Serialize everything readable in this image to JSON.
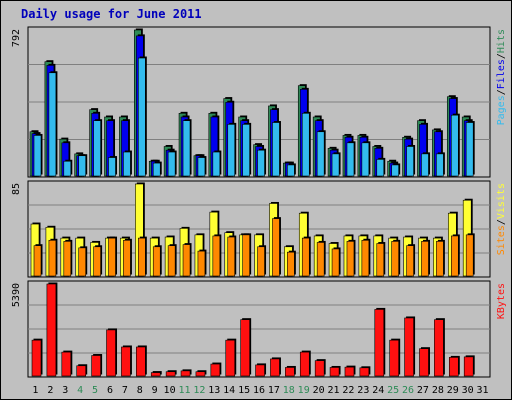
{
  "title": "Daily usage for June 2011",
  "colors": {
    "hits": "#2e8b57",
    "files": "#0000ee",
    "pages": "#33bbee",
    "visits": "#ffff33",
    "sites": "#ff8800",
    "kbytes": "#ff1010",
    "weekend_day_label": "#2e8b57",
    "weekday_label": "#000000",
    "title": "#0000bb"
  },
  "panels": {
    "top": {
      "max_label": "792",
      "legend": [
        "Pages",
        "/",
        "Files",
        "/",
        "Hits"
      ]
    },
    "mid": {
      "max_label": "85",
      "legend": [
        "Sites",
        "/",
        "Visits"
      ]
    },
    "bot": {
      "max_label": "5390",
      "legend": [
        "KBytes"
      ]
    }
  },
  "chart_data": {
    "type": "bar",
    "title": "Daily usage for June 2011",
    "categories": [
      "1",
      "2",
      "3",
      "4",
      "5",
      "6",
      "7",
      "8",
      "9",
      "10",
      "11",
      "12",
      "13",
      "14",
      "15",
      "16",
      "17",
      "18",
      "19",
      "20",
      "21",
      "22",
      "23",
      "24",
      "25",
      "26",
      "27",
      "28",
      "29",
      "30",
      "31"
    ],
    "weekend_days": [
      "4",
      "5",
      "11",
      "12",
      "18",
      "19",
      "25",
      "26"
    ],
    "series": [
      {
        "name": "Hits",
        "panel": "top",
        "ylim": [
          0,
          792
        ],
        "values": [
          240,
          620,
          200,
          120,
          360,
          320,
          320,
          792,
          80,
          160,
          340,
          110,
          340,
          420,
          320,
          170,
          380,
          70,
          490,
          320,
          150,
          220,
          220,
          160,
          80,
          210,
          300,
          250,
          430,
          320,
          0
        ]
      },
      {
        "name": "Files",
        "panel": "top",
        "ylim": [
          0,
          792
        ],
        "values": [
          230,
          600,
          180,
          110,
          340,
          300,
          300,
          760,
          80,
          140,
          320,
          110,
          320,
          400,
          300,
          160,
          360,
          70,
          470,
          300,
          140,
          210,
          210,
          150,
          70,
          200,
          280,
          240,
          420,
          300,
          0
        ]
      },
      {
        "name": "Pages",
        "panel": "top",
        "ylim": [
          0,
          792
        ],
        "values": [
          220,
          560,
          80,
          110,
          300,
          100,
          130,
          640,
          70,
          130,
          300,
          100,
          130,
          280,
          280,
          140,
          290,
          60,
          340,
          240,
          120,
          180,
          180,
          90,
          60,
          160,
          120,
          120,
          330,
          290,
          0
        ]
      },
      {
        "name": "Visits",
        "panel": "mid",
        "ylim": [
          0,
          85
        ],
        "values": [
          48,
          45,
          35,
          35,
          31,
          35,
          35,
          85,
          35,
          36,
          44,
          38,
          59,
          40,
          38,
          38,
          67,
          27,
          58,
          37,
          30,
          37,
          37,
          37,
          35,
          36,
          35,
          35,
          58,
          70,
          0
        ]
      },
      {
        "name": "Sites",
        "panel": "mid",
        "ylim": [
          0,
          85
        ],
        "values": [
          28,
          33,
          32,
          26,
          27,
          35,
          33,
          35,
          27,
          28,
          29,
          23,
          37,
          36,
          38,
          27,
          53,
          22,
          35,
          31,
          25,
          32,
          33,
          30,
          32,
          28,
          32,
          32,
          37,
          38,
          0
        ]
      },
      {
        "name": "KBytes",
        "panel": "bot",
        "ylim": [
          0,
          5390
        ],
        "values": [
          2100,
          5390,
          1400,
          600,
          1200,
          2700,
          1700,
          1700,
          200,
          250,
          300,
          250,
          700,
          2100,
          3300,
          650,
          1000,
          500,
          1400,
          900,
          500,
          520,
          480,
          3900,
          2100,
          3400,
          1600,
          3300,
          1090,
          1120,
          0
        ]
      }
    ]
  }
}
